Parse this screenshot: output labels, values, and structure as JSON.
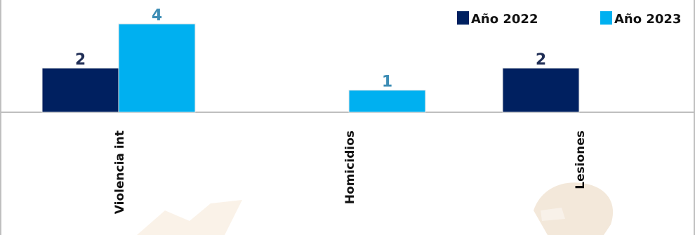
{
  "chart_data": {
    "type": "bar",
    "categories": [
      "Violencia int",
      "Homicidios",
      "Lesiones"
    ],
    "series": [
      {
        "name": "Año 2022",
        "values": [
          2,
          null,
          2
        ],
        "color": "#002060"
      },
      {
        "name": "Año 2023",
        "values": [
          4,
          1,
          null
        ],
        "color": "#00B0F0"
      }
    ],
    "data_labels": [
      [
        "2",
        "",
        "2"
      ],
      [
        "4",
        "1",
        ""
      ]
    ],
    "label_colors": [
      "#1F2D55",
      "#3D8DB5"
    ],
    "ylim": [
      0,
      4
    ],
    "grid": false,
    "legend": "top-right",
    "watermark_colors": [
      "#F3E6D8",
      "#E2C9A8"
    ]
  }
}
